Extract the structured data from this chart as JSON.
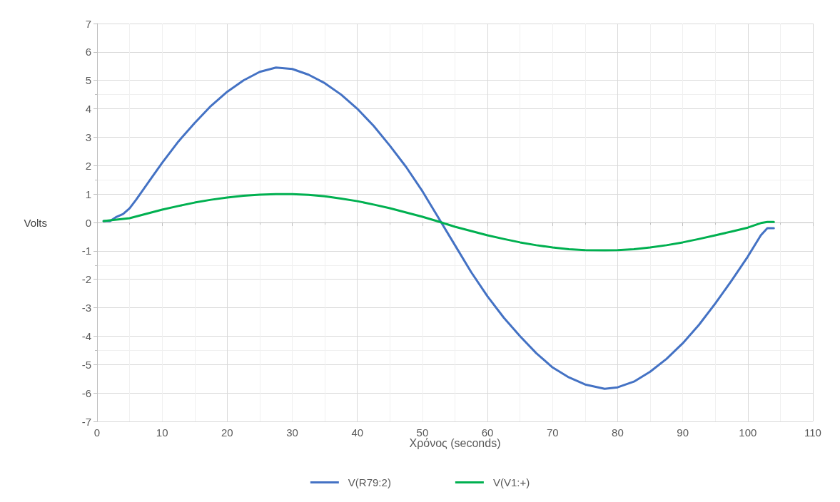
{
  "chart_data": {
    "type": "line",
    "xlabel": "Χρόνος (seconds)",
    "ylabel": "Volts",
    "xlim": [
      0,
      110
    ],
    "xticks": [
      0,
      10,
      20,
      30,
      40,
      50,
      60,
      70,
      80,
      90,
      100,
      110
    ],
    "ylim": [
      -7,
      7
    ],
    "yticks": [
      -7,
      -6,
      -5,
      -4,
      -3,
      -2,
      -1,
      0,
      1,
      2,
      3,
      4,
      5,
      6,
      7
    ],
    "grid": true,
    "legend": "bottom",
    "marker": "none",
    "line_style": "solid",
    "series": [
      {
        "name": "V(R79:2)",
        "color": "#4472c4",
        "x": [
          1,
          2,
          3,
          4,
          5,
          6,
          8,
          10,
          12.5,
          15,
          17.5,
          20,
          22.5,
          25,
          27.5,
          30,
          32.5,
          35,
          37.5,
          40,
          42.5,
          45,
          47.5,
          50,
          52.5,
          55,
          57.5,
          60,
          62.5,
          65,
          67.5,
          70,
          72.5,
          75,
          78,
          80,
          82.5,
          85,
          87.5,
          90,
          92.5,
          95,
          97.5,
          100,
          102,
          103,
          104
        ],
        "values": [
          0.05,
          0.05,
          0.2,
          0.3,
          0.5,
          0.8,
          1.45,
          2.1,
          2.85,
          3.5,
          4.1,
          4.6,
          5.0,
          5.3,
          5.45,
          5.4,
          5.2,
          4.9,
          4.5,
          4.0,
          3.4,
          2.7,
          1.95,
          1.1,
          0.15,
          -0.8,
          -1.75,
          -2.6,
          -3.35,
          -4.0,
          -4.6,
          -5.1,
          -5.45,
          -5.7,
          -5.85,
          -5.8,
          -5.6,
          -5.25,
          -4.8,
          -4.25,
          -3.6,
          -2.85,
          -2.05,
          -1.2,
          -0.45,
          -0.2,
          -0.2
        ]
      },
      {
        "name": "V(V1:+)",
        "color": "#00b050",
        "x": [
          1,
          3,
          5,
          7.5,
          10,
          12.5,
          15,
          17.5,
          20,
          22.5,
          25,
          27.5,
          30,
          32.5,
          35,
          37.5,
          40,
          42.5,
          45,
          47.5,
          50,
          52.5,
          55,
          57.5,
          60,
          62.5,
          65,
          67.5,
          70,
          72.5,
          75,
          78,
          80,
          82.5,
          85,
          87.5,
          90,
          92.5,
          95,
          97.5,
          100,
          102,
          103,
          104
        ],
        "values": [
          0.05,
          0.1,
          0.15,
          0.3,
          0.45,
          0.58,
          0.7,
          0.8,
          0.88,
          0.94,
          0.98,
          1.0,
          1.0,
          0.97,
          0.92,
          0.84,
          0.75,
          0.63,
          0.5,
          0.35,
          0.2,
          0.03,
          -0.15,
          -0.3,
          -0.45,
          -0.58,
          -0.7,
          -0.8,
          -0.88,
          -0.94,
          -0.97,
          -0.98,
          -0.97,
          -0.94,
          -0.88,
          -0.8,
          -0.7,
          -0.58,
          -0.45,
          -0.32,
          -0.18,
          -0.02,
          0.02,
          0.02
        ]
      }
    ]
  }
}
